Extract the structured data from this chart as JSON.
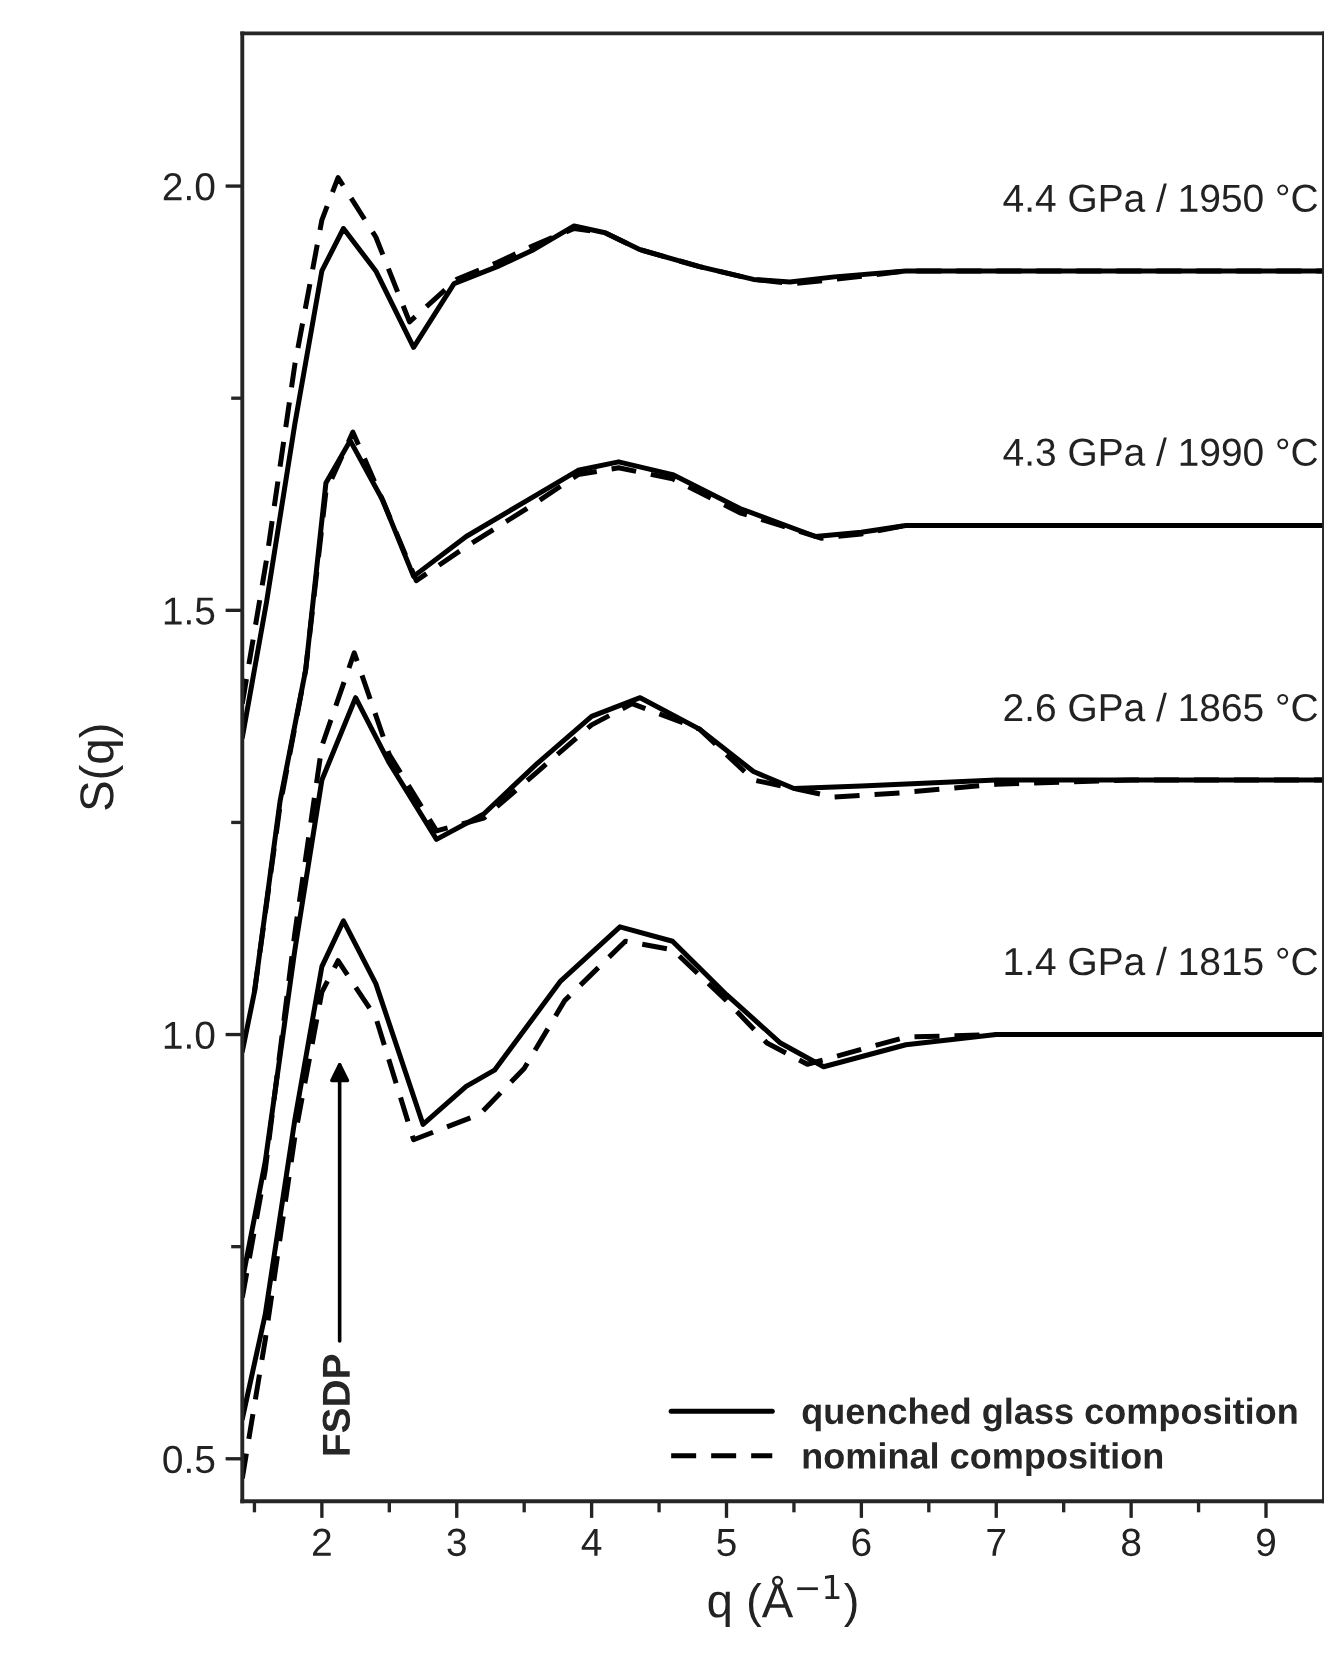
{
  "chart_data": {
    "type": "line",
    "xlabel": "q (Å$^{−1}$)",
    "ylabel": "S(q)",
    "xlim": [
      1.41,
      9.43
    ],
    "ylim": [
      0.45,
      2.18
    ],
    "xticks": [
      2,
      3,
      4,
      5,
      6,
      7,
      8,
      9
    ],
    "yticks": [
      {
        "value": 0.5,
        "label": "0.5"
      },
      {
        "value": 1.0,
        "label": "1.0"
      },
      {
        "value": 1.5,
        "label": "1.5"
      },
      {
        "value": 2.0,
        "label": "2.0"
      }
    ],
    "grid": false,
    "legend": "bottom right",
    "marker": "none",
    "series": [
      {
        "name": "quenched glass composition",
        "color": "#000000",
        "line_style": "solid",
        "x": [
          1.41,
          1.59,
          1.8,
          2.0,
          2.16,
          2.4,
          2.68,
          2.98,
          3.3,
          3.57,
          3.87,
          4.1,
          4.36,
          4.8,
          5.2,
          5.47,
          5.8,
          6.33,
          7.0,
          8.0,
          9.43
        ],
        "values": [
          1.35,
          1.51,
          1.72,
          1.9,
          1.95,
          1.9,
          1.81,
          1.885,
          1.905,
          1.925,
          1.953,
          1.945,
          1.925,
          1.905,
          1.89,
          1.887,
          1.893,
          1.9,
          1.9,
          1.9,
          1.9
        ]
      },
      {
        "color": "#000000",
        "line_style": "solid",
        "x": [
          1.41,
          1.5,
          1.69,
          1.88,
          2.03,
          2.21,
          2.45,
          2.68,
          3.07,
          3.57,
          3.9,
          4.2,
          4.6,
          5.1,
          5.66,
          6.0,
          6.33,
          7.0,
          8.0,
          9.43
        ],
        "values": [
          0.98,
          1.05,
          1.275,
          1.43,
          1.65,
          1.7,
          1.63,
          1.54,
          1.587,
          1.634,
          1.665,
          1.675,
          1.66,
          1.62,
          1.587,
          1.592,
          1.6,
          1.6,
          1.6,
          1.6
        ]
      },
      {
        "color": "#000000",
        "line_style": "solid",
        "x": [
          1.41,
          1.58,
          1.8,
          2.0,
          2.25,
          2.5,
          2.85,
          3.2,
          3.6,
          4.0,
          4.36,
          4.8,
          5.2,
          5.5,
          6.0,
          7.0,
          8.0,
          9.43
        ],
        "values": [
          0.71,
          0.85,
          1.1,
          1.3,
          1.397,
          1.32,
          1.23,
          1.26,
          1.32,
          1.375,
          1.397,
          1.36,
          1.31,
          1.29,
          1.293,
          1.3,
          1.3,
          1.3
        ]
      },
      {
        "color": "#000000",
        "line_style": "solid",
        "x": [
          1.41,
          1.58,
          1.8,
          2.0,
          2.16,
          2.4,
          2.75,
          3.07,
          3.28,
          3.77,
          4.21,
          4.6,
          5.0,
          5.4,
          5.72,
          6.33,
          7.0,
          8.0,
          9.43
        ],
        "values": [
          0.547,
          0.67,
          0.9,
          1.08,
          1.134,
          1.06,
          0.894,
          0.939,
          0.958,
          1.063,
          1.127,
          1.11,
          1.047,
          0.99,
          0.962,
          0.988,
          1.0,
          1.0,
          1.0
        ]
      },
      {
        "name": "nominal composition",
        "color": "#000000",
        "line_style": "dashed",
        "x": [
          1.41,
          1.59,
          1.8,
          2.0,
          2.12,
          2.4,
          2.65,
          3.0,
          3.3,
          3.57,
          3.87,
          4.1,
          4.36,
          4.8,
          5.2,
          5.5,
          5.8,
          6.33,
          7.0,
          8.0,
          9.43
        ],
        "values": [
          1.39,
          1.56,
          1.79,
          1.96,
          2.01,
          1.94,
          1.84,
          1.89,
          1.91,
          1.93,
          1.95,
          1.945,
          1.925,
          1.905,
          1.89,
          1.885,
          1.89,
          1.9,
          1.9,
          1.9,
          1.9
        ]
      },
      {
        "color": "#000000",
        "line_style": "dashed",
        "x": [
          1.5,
          1.69,
          1.88,
          2.03,
          2.23,
          2.45,
          2.7,
          3.07,
          3.57,
          3.9,
          4.2,
          4.6,
          5.1,
          5.7,
          6.0,
          6.33,
          7.0,
          8.0,
          9.43
        ],
        "values": [
          1.05,
          1.27,
          1.43,
          1.64,
          1.71,
          1.63,
          1.535,
          1.575,
          1.625,
          1.66,
          1.668,
          1.655,
          1.615,
          1.585,
          1.59,
          1.6,
          1.6,
          1.6,
          1.6
        ]
      },
      {
        "color": "#000000",
        "line_style": "dashed",
        "x": [
          1.41,
          1.58,
          1.8,
          2.0,
          2.24,
          2.5,
          2.85,
          3.2,
          3.6,
          4.0,
          4.3,
          4.8,
          5.2,
          5.8,
          6.3,
          7.0,
          8.0,
          9.43
        ],
        "values": [
          0.69,
          0.84,
          1.12,
          1.34,
          1.45,
          1.33,
          1.24,
          1.255,
          1.31,
          1.365,
          1.39,
          1.36,
          1.3,
          1.28,
          1.285,
          1.295,
          1.3,
          1.3
        ]
      },
      {
        "color": "#000000",
        "line_style": "dashed",
        "x": [
          1.41,
          1.58,
          1.8,
          2.0,
          2.12,
          2.4,
          2.68,
          3.17,
          3.5,
          3.8,
          4.25,
          4.6,
          5.0,
          5.3,
          5.6,
          6.33,
          7.0,
          8.0,
          9.43
        ],
        "values": [
          0.477,
          0.64,
          0.88,
          1.05,
          1.087,
          1.02,
          0.876,
          0.906,
          0.96,
          1.04,
          1.11,
          1.1,
          1.04,
          0.99,
          0.965,
          0.997,
          1.0,
          1.0,
          1.0
        ]
      }
    ],
    "annotations": [
      "4.4 GPa / 1950 °C",
      "4.3 GPa / 1990 °C",
      "2.6 GPa / 1865 °C",
      "1.4 GPa / 1815 °C",
      "FSDP"
    ]
  }
}
